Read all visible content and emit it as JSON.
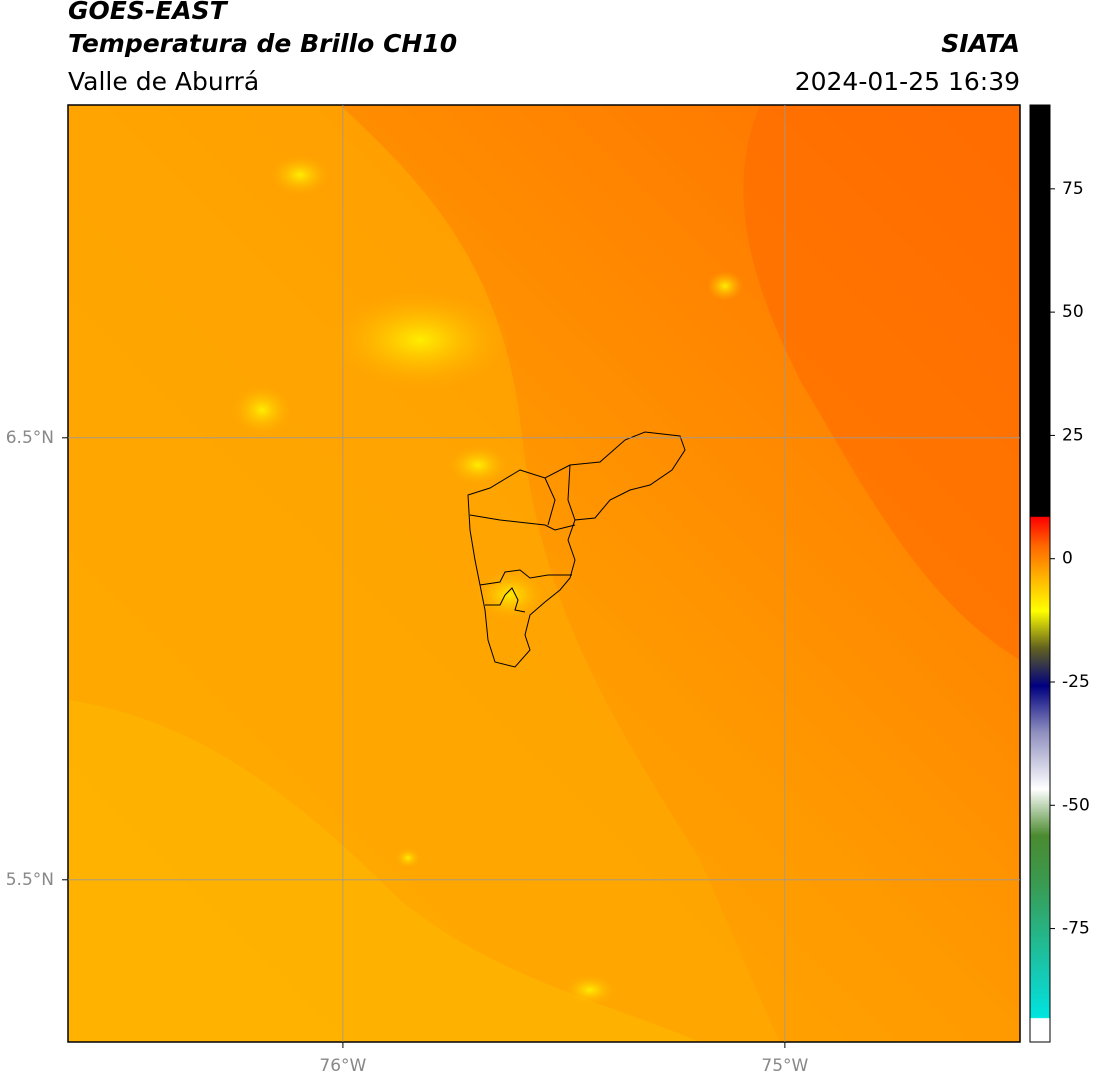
{
  "header": {
    "title": "GOES-EAST",
    "subtitle": "Temperatura de Brillo CH10",
    "region": "Valle de Aburrá",
    "source": "SIATA",
    "datetime": "2024-01-25 16:39"
  },
  "map": {
    "lonlim": [
      -76.622,
      -74.468
    ],
    "latlim": [
      5.133,
      7.253
    ],
    "lon_ticks": [
      {
        "value": -76,
        "label": "76°W"
      },
      {
        "value": -75,
        "label": "75°W"
      }
    ],
    "lat_ticks": [
      {
        "value": 6.5,
        "label": "6.5°N"
      },
      {
        "value": 5.5,
        "label": "5.5°N"
      }
    ]
  },
  "colorbar": {
    "range": [
      -98,
      92
    ],
    "ticks": [
      75,
      50,
      25,
      0,
      -25,
      -50,
      -75
    ]
  }
}
